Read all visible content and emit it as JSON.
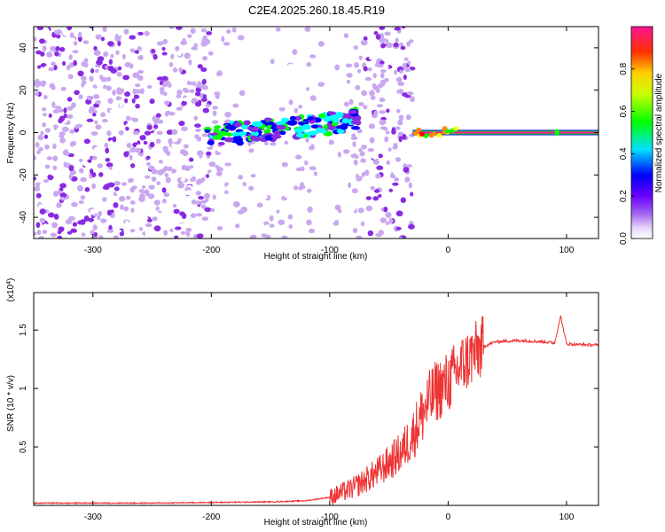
{
  "title": "C2E4.2025.260.18.45.R19",
  "chart_data": [
    {
      "type": "heatmap",
      "title": "C2E4.2025.260.18.45.R19",
      "xlabel": "Height of straight line (km)",
      "ylabel": "Frequency (Hz)",
      "xlim": [
        -350,
        127
      ],
      "ylim": [
        -50,
        50
      ],
      "xticks": [
        -300,
        -200,
        -100,
        0,
        100
      ],
      "yticks": [
        -40,
        -20,
        0,
        20,
        40
      ],
      "colorbar": {
        "label": "Normalized spectral amplitude",
        "range": [
          0,
          1
        ],
        "ticks": [
          0.0,
          0.2,
          0.4,
          0.6,
          0.8
        ],
        "colors": [
          "#ffffff",
          "#c9a8f0",
          "#8a2be2",
          "#0000ff",
          "#00ffff",
          "#00ff00",
          "#ffff00",
          "#ff8c00",
          "#ff0000",
          "#ff1493"
        ]
      },
      "features": [
        {
          "name": "noise field",
          "x_range": [
            -350,
            -30
          ],
          "amplitude": 0.15
        },
        {
          "name": "signal band",
          "x_range": [
            -205,
            -75
          ],
          "freq_range": [
            -5,
            12
          ],
          "amplitude": 0.4
        },
        {
          "name": "carrier",
          "x_range": [
            -30,
            127
          ],
          "freq": 0,
          "amplitude": 0.95
        }
      ]
    },
    {
      "type": "line",
      "xlabel": "Height of straight line (km)",
      "ylabel": "SNR (10 * v/v)",
      "ylabel_multiplier": "(x10",
      "ylabel_exponent": "4",
      "xlim": [
        -350,
        127
      ],
      "ylim": [
        0,
        1.82
      ],
      "xticks": [
        -300,
        -200,
        -100,
        0,
        100
      ],
      "yticks": [
        0.5,
        1.0,
        1.5
      ],
      "series": [
        {
          "name": "SNR",
          "color": "#ee3333",
          "x": [
            -350,
            -250,
            -200,
            -150,
            -120,
            -100,
            -80,
            -60,
            -40,
            -30,
            -20,
            -10,
            0,
            10,
            20,
            30,
            40,
            60,
            80,
            90,
            95,
            100,
            127
          ],
          "values": [
            0.02,
            0.02,
            0.025,
            0.03,
            0.04,
            0.07,
            0.15,
            0.28,
            0.45,
            0.6,
            0.82,
            0.98,
            1.05,
            1.18,
            1.28,
            1.36,
            1.4,
            1.41,
            1.4,
            1.39,
            1.62,
            1.38,
            1.37
          ]
        }
      ]
    }
  ]
}
